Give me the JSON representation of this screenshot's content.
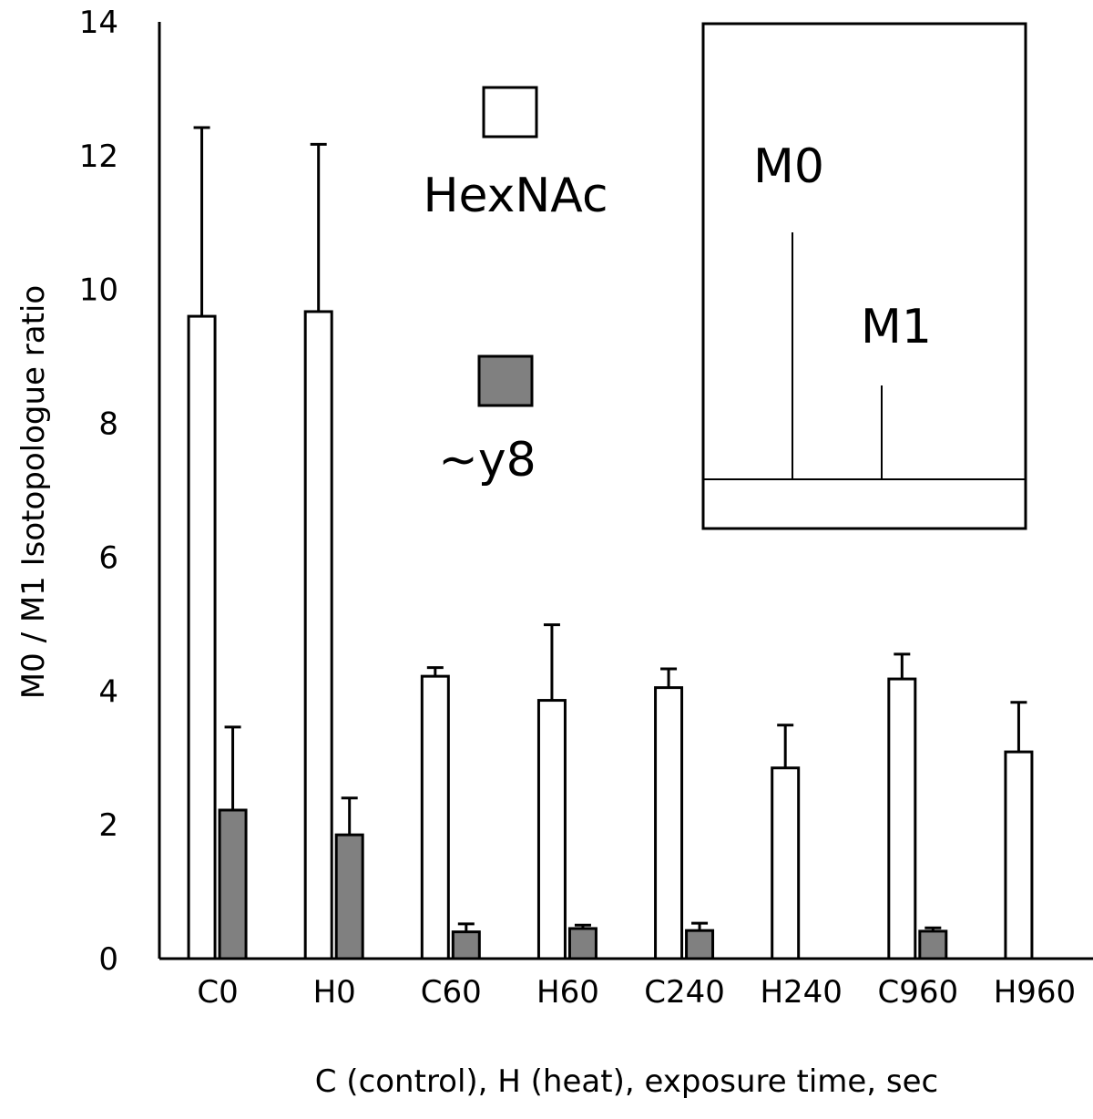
{
  "chart_data": {
    "type": "bar",
    "title": "",
    "xlabel": "C (control), H (heat), exposure time, sec",
    "ylabel": "M0 / M1 Isotopologue ratio",
    "ylim": [
      0,
      14
    ],
    "yticks": [
      "0",
      "2",
      "4",
      "6",
      "8",
      "10",
      "12",
      "14"
    ],
    "grid": false,
    "categories": [
      "C0",
      "H0",
      "C60",
      "H60",
      "C240",
      "H240",
      "C960",
      "H960"
    ],
    "series": [
      {
        "name": "HexNAc",
        "color": "#ffffff",
        "values": [
          9.6,
          9.67,
          4.22,
          3.86,
          4.05,
          2.85,
          4.18,
          3.09
        ],
        "error_upper": [
          12.42,
          12.17,
          4.35,
          4.99,
          4.33,
          3.49,
          4.55,
          3.83
        ]
      },
      {
        "name": "~y8",
        "color": "#808080",
        "values": [
          2.22,
          1.85,
          0.4,
          0.45,
          0.42,
          null,
          0.41,
          null
        ],
        "error_upper": [
          3.46,
          2.4,
          0.52,
          0.5,
          0.53,
          null,
          0.46,
          null
        ]
      }
    ],
    "legend": "top-center",
    "inset": {
      "peak_labels": [
        "M0",
        "M1"
      ],
      "peak_heights": [
        1.0,
        0.38
      ]
    }
  }
}
